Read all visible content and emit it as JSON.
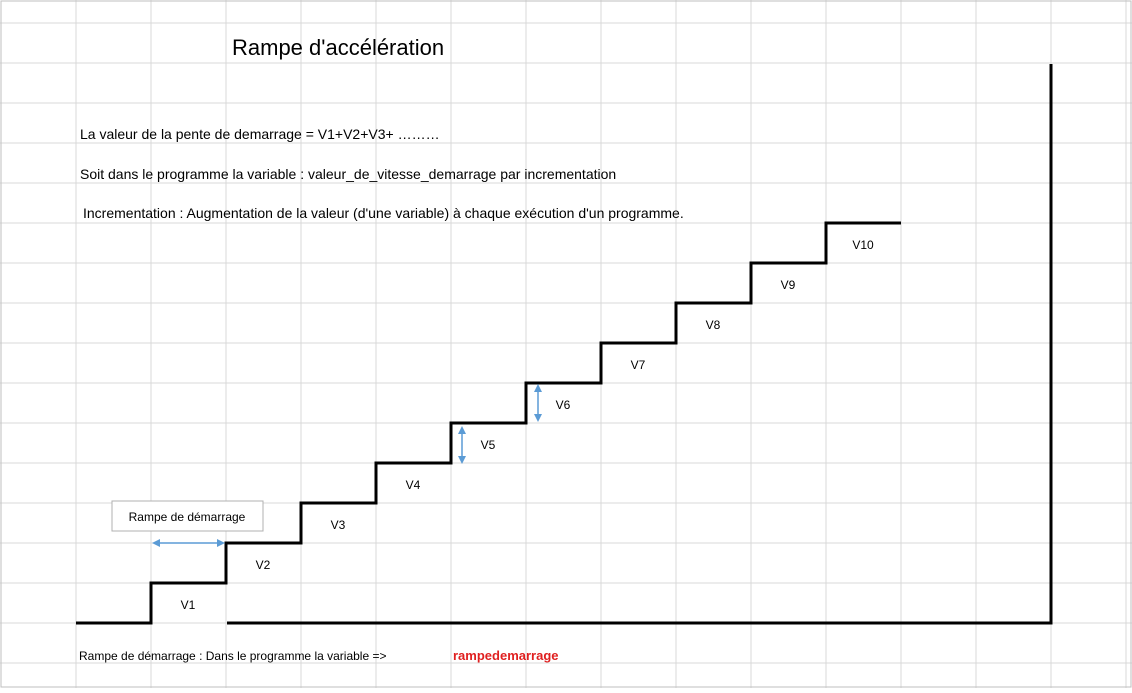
{
  "title": "Rampe d'accélération",
  "lines": [
    "La valeur de la pente de demarrage = V1+V2+V3+ ………",
    "Soit dans le programme la variable : valeur_de_vitesse_demarrage par incrementation",
    "Incrementation : Augmentation de la valeur (d'une variable) à chaque exécution d'un programme."
  ],
  "ramp_box_label": "Rampe de démarrage",
  "steps": [
    "V1",
    "V2",
    "V3",
    "V4",
    "V5",
    "V6",
    "V7",
    "V8",
    "V9",
    "V10"
  ],
  "footer": {
    "label": "Rampe de démarrage : Dans le programme la variable =>",
    "variable": "rampedemarrage"
  },
  "colors": {
    "grid": "#d9d9d9",
    "stair": "#000000",
    "arrow": "#5b9bd5",
    "highlight": "#e02020"
  }
}
